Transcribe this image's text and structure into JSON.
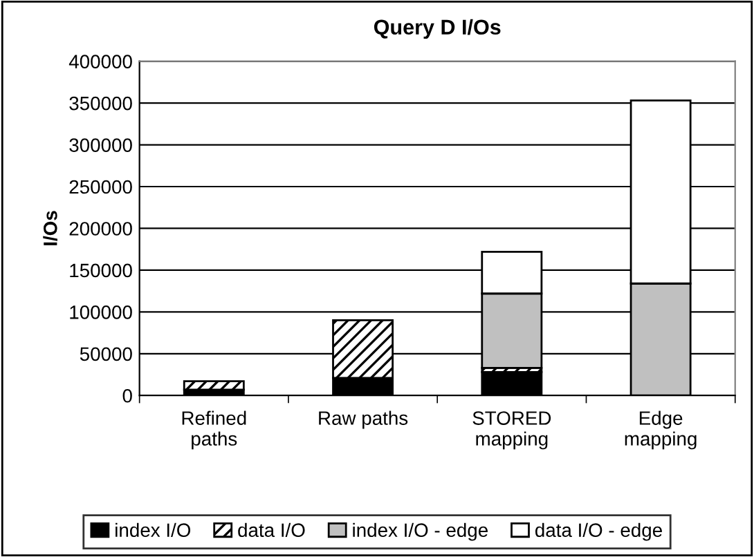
{
  "chart_data": {
    "type": "bar",
    "title": "Query D I/Os",
    "ylabel": "I/Os",
    "categories": [
      "Refined\npaths",
      "Raw paths",
      "STORED\nmapping",
      "Edge\nmapping"
    ],
    "stacked": true,
    "series": [
      {
        "name": "index I/O",
        "color": "#000000",
        "values": [
          7000,
          21000,
          28000,
          null
        ]
      },
      {
        "name": "data I/O",
        "color": "#ffffff",
        "values": [
          10000,
          69000,
          5000,
          null
        ]
      },
      {
        "name": "index I/O - edge",
        "color": "#c0c0c0",
        "values": [
          null,
          null,
          89000,
          134000
        ]
      },
      {
        "name": "data I/O - edge",
        "color": "#ffffff",
        "values": [
          null,
          null,
          50000,
          219000
        ]
      }
    ],
    "ylim": [
      0,
      400000
    ],
    "yticks": [
      0,
      50000,
      100000,
      150000,
      200000,
      250000,
      300000,
      350000,
      400000
    ],
    "grid": "y",
    "legend": "bottom"
  }
}
